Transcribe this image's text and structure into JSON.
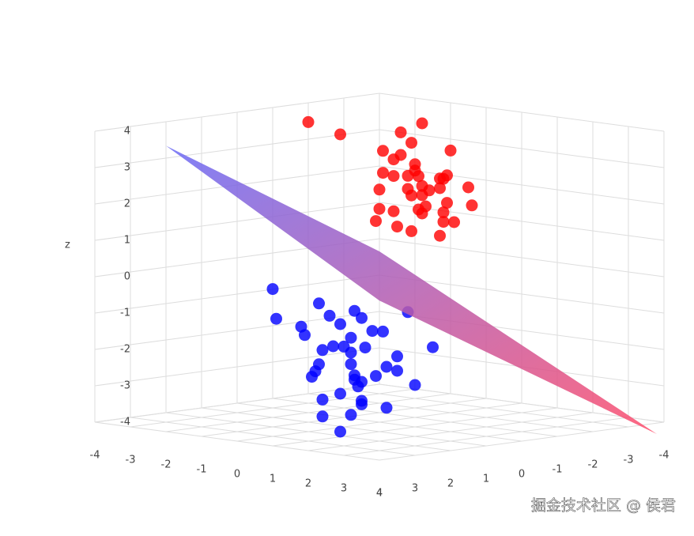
{
  "chart_data": {
    "type": "scatter3d",
    "axis_title_z": "z",
    "xlim": [
      -4,
      4
    ],
    "ylim": [
      -4,
      4
    ],
    "zlim": [
      -4,
      4
    ],
    "xticks": [
      -4,
      -3,
      -2,
      -1,
      0,
      1,
      2,
      3,
      4
    ],
    "yticks": [
      -4,
      -3,
      -2,
      -1,
      0,
      1,
      2,
      3,
      4
    ],
    "zticks": [
      -4,
      -3,
      -2,
      -1,
      0,
      1,
      2,
      3,
      4
    ],
    "grid": true,
    "series": [
      {
        "color": "#ff0000",
        "x": [
          0.5,
          1.2,
          0.8,
          1.6,
          0.2,
          1.0,
          1.9,
          0.6,
          1.4,
          0.9,
          0.3,
          1.7,
          1.1,
          0.7,
          1.3,
          2.2,
          0.4,
          1.5,
          0.9,
          1.8,
          0.1,
          1.2,
          0.6,
          2.0,
          1.0,
          0.8,
          1.4,
          0.5,
          1.6,
          2.4,
          -0.6,
          -1.2,
          0.9,
          1.3,
          0.7,
          1.1,
          1.9,
          0.2,
          1.5,
          2.6
        ],
        "y": [
          -0.3,
          0.2,
          -0.6,
          0.4,
          0.1,
          -0.2,
          0.8,
          0.5,
          -0.4,
          0.0,
          -0.8,
          -0.1,
          0.6,
          -0.2,
          0.3,
          0.1,
          0.4,
          -0.5,
          0.9,
          -0.7,
          -0.3,
          0.0,
          0.7,
          0.3,
          -0.9,
          0.2,
          0.5,
          -0.1,
          -0.3,
          0.6,
          0.5,
          0.8,
          -0.4,
          0.1,
          0.3,
          -0.6,
          0.2,
          -0.2,
          0.7,
          0.0
        ],
        "z": [
          2.8,
          3.1,
          2.4,
          2.0,
          3.5,
          2.6,
          2.2,
          3.0,
          1.9,
          3.8,
          2.7,
          2.9,
          1.6,
          2.3,
          3.3,
          1.8,
          2.5,
          3.6,
          2.1,
          2.6,
          3.2,
          2.4,
          1.7,
          3.0,
          2.8,
          4.1,
          1.5,
          3.4,
          2.2,
          1.9,
          3.9,
          4.2,
          2.0,
          4.4,
          2.9,
          2.5,
          1.4,
          1.8,
          2.7,
          2.3
        ]
      },
      {
        "color": "#0000ff",
        "x": [
          -0.8,
          -0.3,
          -1.2,
          -0.5,
          0.1,
          -1.0,
          -0.6,
          -1.5,
          -0.2,
          0.3,
          -0.9,
          -0.4,
          -1.3,
          0.0,
          -0.7,
          -1.8,
          -0.1,
          -1.1,
          0.4,
          -0.6,
          -2.5,
          -2.0,
          -0.3,
          -0.9,
          0.6,
          -1.4,
          -0.5,
          0.2,
          -0.8,
          -1.0,
          -0.2,
          -1.6,
          0.5,
          -0.4,
          -1.2,
          0.8,
          -0.7,
          -0.1,
          -1.9,
          0.9
        ],
        "y": [
          0.2,
          -0.4,
          0.5,
          0.0,
          0.6,
          -0.3,
          0.7,
          0.1,
          0.3,
          -0.5,
          0.9,
          0.4,
          -0.2,
          0.8,
          -0.6,
          0.3,
          1.0,
          0.6,
          0.2,
          -0.1,
          0.5,
          0.9,
          0.4,
          -0.7,
          0.1,
          0.2,
          1.1,
          -0.3,
          0.6,
          -0.4,
          0.5,
          -0.8,
          0.3,
          0.0,
          1.0,
          -0.2,
          0.4,
          0.7,
          0.0,
          -0.6
        ],
        "z": [
          -2.0,
          -1.6,
          -2.5,
          -1.2,
          -2.8,
          -3.0,
          -1.9,
          -2.2,
          -3.4,
          -1.0,
          -2.6,
          -3.8,
          -1.5,
          -2.3,
          -2.9,
          -1.8,
          -3.1,
          -0.8,
          -2.4,
          -3.6,
          -0.6,
          -1.3,
          -2.7,
          -1.7,
          -2.1,
          -4.0,
          -3.3,
          -2.6,
          -1.1,
          -3.2,
          -0.9,
          -2.4,
          -3.5,
          -2.0,
          -1.4,
          -2.9,
          -4.3,
          -1.6,
          -3.0,
          -1.9
        ]
      }
    ],
    "surface": {
      "x": [
        -3,
        4,
        4,
        -4
      ],
      "y": [
        3,
        4,
        -3.8,
        -4
      ],
      "z": [
        3.6,
        1.74,
        -4.3,
        -1.7
      ],
      "colorscale": [
        "#6a6af5",
        "#ff4d6a"
      ]
    },
    "watermark": "掘金技术社区 @ 侯君"
  }
}
